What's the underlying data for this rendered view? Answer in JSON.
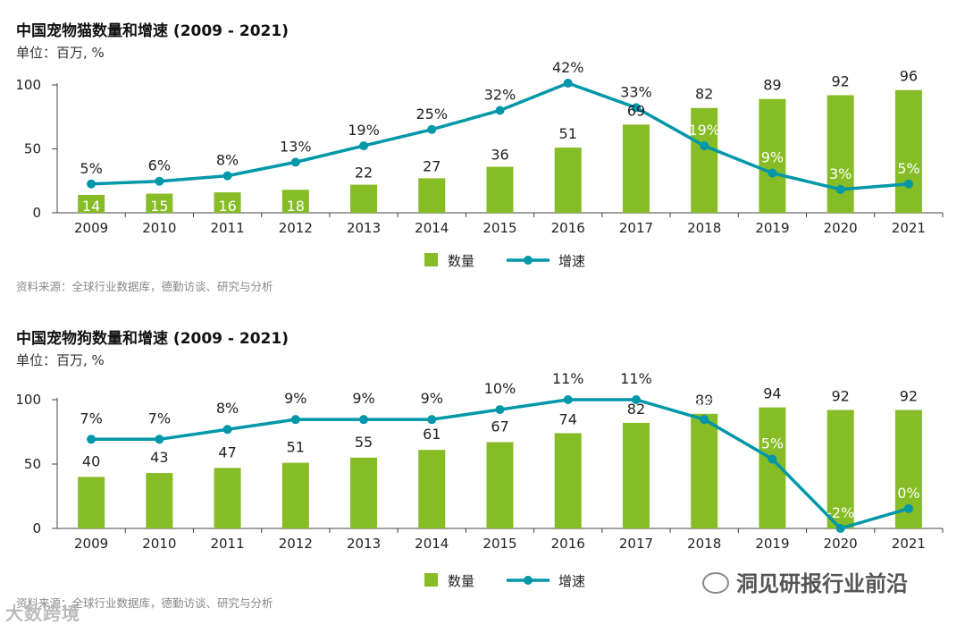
{
  "chart_data": [
    {
      "type": "bar",
      "title": "中国宠物猫数量和增速 (2009 - 2021)",
      "unit_label": "单位：百万, %",
      "categories": [
        "2009",
        "2010",
        "2011",
        "2012",
        "2013",
        "2014",
        "2015",
        "2016",
        "2017",
        "2018",
        "2019",
        "2020",
        "2021"
      ],
      "series": [
        {
          "name": "数量",
          "kind": "bar",
          "values": [
            14,
            15,
            16,
            18,
            22,
            27,
            36,
            51,
            69,
            82,
            89,
            92,
            96
          ],
          "labels": [
            "14",
            "15",
            "16",
            "18",
            "22",
            "27",
            "36",
            "51",
            "69",
            "82",
            "89",
            "92",
            "96"
          ]
        },
        {
          "name": "增速",
          "kind": "line",
          "values": [
            5,
            6,
            8,
            13,
            19,
            25,
            32,
            42,
            33,
            19,
            9,
            3,
            5
          ],
          "labels": [
            "5%",
            "6%",
            "8%",
            "13%",
            "19%",
            "25%",
            "32%",
            "42%",
            "33%",
            "19%",
            "9%",
            "3%",
            "5%"
          ]
        }
      ],
      "ylim": [
        0,
        100
      ],
      "yticks": [
        0,
        50,
        100
      ],
      "ytick_labels": [
        "0",
        "50",
        "100"
      ],
      "line_ylim": [
        0,
        42
      ],
      "legend": [
        "数量",
        "增速"
      ],
      "source": "资料来源：全球行业数据库，德勤访谈、研究与分析",
      "colors": {
        "bar": "#86bc25",
        "line": "#0097a9"
      }
    },
    {
      "type": "bar",
      "title": "中国宠物狗数量和增速 (2009 - 2021)",
      "unit_label": "单位：百万, %",
      "categories": [
        "2009",
        "2010",
        "2011",
        "2012",
        "2013",
        "2014",
        "2015",
        "2016",
        "2017",
        "2018",
        "2019",
        "2020",
        "2021"
      ],
      "series": [
        {
          "name": "数量",
          "kind": "bar",
          "values": [
            40,
            43,
            47,
            51,
            55,
            61,
            67,
            74,
            82,
            89,
            94,
            92,
            92
          ],
          "labels": [
            "40",
            "43",
            "47",
            "51",
            "55",
            "61",
            "67",
            "74",
            "82",
            "89",
            "94",
            "92",
            "92"
          ]
        },
        {
          "name": "增速",
          "kind": "line",
          "values": [
            7,
            7,
            8,
            9,
            9,
            9,
            10,
            11,
            11,
            9,
            5,
            -2,
            0
          ],
          "labels": [
            "7%",
            "7%",
            "8%",
            "9%",
            "9%",
            "9%",
            "10%",
            "11%",
            "11%",
            "9%",
            "5%",
            "-2%",
            "0%"
          ]
        }
      ],
      "ylim": [
        0,
        100
      ],
      "yticks": [
        0,
        50,
        100
      ],
      "ytick_labels": [
        "0",
        "50",
        "100"
      ],
      "line_ylim": [
        -2,
        11
      ],
      "legend": [
        "数量",
        "增速"
      ],
      "source": "资料来源：全球行业数据库，德勤访谈、研究与分析",
      "colors": {
        "bar": "#86bc25",
        "line": "#0097a9"
      }
    }
  ],
  "watermark": {
    "left": "大数跨境",
    "right": "洞见研报行业前沿"
  }
}
